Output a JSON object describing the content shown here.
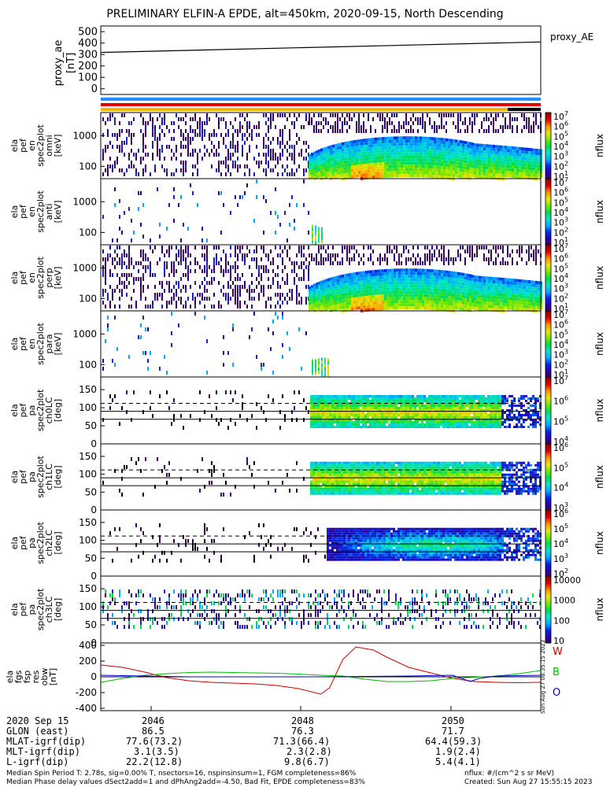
{
  "title": "PRELIMINARY ELFIN-A EPDE, alt=450km, 2020-09-15, North Descending",
  "chart_data": [
    {
      "type": "line",
      "panel": "proxy_ae",
      "ylabel": "proxy_ae\n[nT]",
      "legend": "proxy_AE",
      "yticks": [
        "500",
        "400",
        "300",
        "200",
        "100",
        "0"
      ],
      "ylim": [
        -50,
        550
      ],
      "series": [
        {
          "name": "proxy_AE",
          "x": [
            "20:45:15",
            "20:51:30"
          ],
          "y": [
            318,
            410
          ]
        }
      ]
    },
    {
      "type": "heatmap",
      "panel": "spectrogram",
      "ylabel": "ela\npef\nen\nspec2plot\nomni\n[keV]",
      "yticks": [
        "1000",
        "100"
      ],
      "colorbar_ticks": [
        "10^7",
        "10^6",
        "10^5",
        "10^4",
        "10^3",
        "10^2",
        "10^1"
      ],
      "colorbar_label": "nflux",
      "onset": "20:48:05"
    },
    {
      "type": "heatmap",
      "panel": "spectrogram",
      "ylabel": "ela\npef\nen\nspec2plot\nanti\n[keV]",
      "yticks": [
        "1000",
        "100"
      ],
      "colorbar_ticks": [
        "10^7",
        "10^6",
        "10^5",
        "10^4",
        "10^3",
        "10^2",
        "10^1"
      ],
      "colorbar_label": "nflux"
    },
    {
      "type": "heatmap",
      "panel": "spectrogram",
      "ylabel": "ela\npef\nen\nspec2plot\nperp\n[keV]",
      "yticks": [
        "1000",
        "100"
      ],
      "colorbar_ticks": [
        "10^7",
        "10^6",
        "10^5",
        "10^4",
        "10^3",
        "10^2",
        "10^1"
      ],
      "colorbar_label": "nflux"
    },
    {
      "type": "heatmap",
      "panel": "spectrogram",
      "ylabel": "ela\npef\nen\nspec2plot\npara\n[keV]",
      "yticks": [
        "1000",
        "100"
      ],
      "colorbar_ticks": [
        "10^7",
        "10^6",
        "10^5",
        "10^4",
        "10^3",
        "10^2",
        "10^1"
      ],
      "colorbar_label": "nflux"
    },
    {
      "type": "heatmap",
      "panel": "pitch-angle",
      "ylabel": "ela\npef\npa\nspec2plot\nch0LC\n[deg]",
      "yticks": [
        "150",
        "100",
        "50",
        "0"
      ],
      "colorbar_ticks": [
        "10^7",
        "10^6",
        "10^5",
        "10^4"
      ],
      "colorbar_label": "nflux"
    },
    {
      "type": "heatmap",
      "panel": "pitch-angle",
      "ylabel": "ela\npef\npa\nspec2plot\nch1LC\n[deg]",
      "yticks": [
        "150",
        "100",
        "50",
        "0"
      ],
      "colorbar_ticks": [
        "10^6",
        "10^5",
        "10^4",
        "10^3"
      ],
      "colorbar_label": "nflux"
    },
    {
      "type": "heatmap",
      "panel": "pitch-angle",
      "ylabel": "ela\npef\npa\nspec2plot\nch2LC\n[deg]",
      "yticks": [
        "150",
        "100",
        "50",
        "0"
      ],
      "colorbar_ticks": [
        "10^6",
        "10^5",
        "10^4",
        "10^3",
        "10^2"
      ],
      "colorbar_label": "nflux"
    },
    {
      "type": "heatmap",
      "panel": "pitch-angle",
      "ylabel": "ela\npef\npa\nspec2plot\nch3LC\n[deg]",
      "yticks": [
        "150",
        "100",
        "50",
        "0"
      ],
      "colorbar_ticks": [
        "10000",
        "1000",
        "100",
        "10"
      ],
      "colorbar_label": "nflux"
    },
    {
      "type": "line",
      "panel": "fgm",
      "ylabel": "ela\nfgs\nfsp\nres\nobw\n[nT]",
      "yticks": [
        "400",
        "200",
        "0",
        "-200",
        "-400"
      ],
      "ylim": [
        -430,
        430
      ],
      "legend": [
        "W",
        "B",
        "O"
      ],
      "series": [
        {
          "name": "W",
          "color": "#cc0000",
          "x": [
            0,
            5,
            10,
            15,
            20,
            25,
            30,
            35,
            40,
            45,
            50,
            52,
            55,
            58,
            62,
            65,
            70,
            75,
            80,
            85,
            90,
            95,
            100
          ],
          "y": [
            150,
            120,
            60,
            -10,
            -50,
            -70,
            -80,
            -90,
            -110,
            -150,
            -220,
            -140,
            220,
            380,
            340,
            250,
            120,
            50,
            -20,
            -60,
            -70,
            -75,
            -70
          ]
        },
        {
          "name": "B",
          "color": "#00bb00",
          "x": [
            0,
            5,
            10,
            15,
            20,
            25,
            30,
            35,
            40,
            45,
            50,
            55,
            60,
            65,
            70,
            75,
            80,
            85,
            90,
            95,
            100
          ],
          "y": [
            -70,
            -20,
            20,
            40,
            55,
            60,
            55,
            50,
            45,
            35,
            20,
            10,
            -30,
            -60,
            -60,
            -50,
            -20,
            -5,
            10,
            40,
            80
          ]
        },
        {
          "name": "O",
          "color": "#0000cc",
          "x": [
            0,
            10,
            20,
            30,
            40,
            50,
            60,
            70,
            80,
            84,
            86,
            90,
            100
          ],
          "y": [
            20,
            10,
            0,
            0,
            0,
            0,
            5,
            10,
            20,
            -60,
            -20,
            10,
            20
          ]
        }
      ]
    }
  ],
  "timestamp": "Sun Aug 27 08:35:15 2023",
  "xaxis": {
    "row_labels": [
      "2020 Sep 15",
      "GLON (east)",
      "MLAT-igrf(dip)",
      "MLT-igrf(dip)",
      "L-igrf(dip)"
    ],
    "ticks": [
      {
        "x": "2046",
        "glon": "86.5",
        "mlat": "77.6(73.2)",
        "mlt": "3.1(3.5)",
        "l": "22.2(12.8)"
      },
      {
        "x": "2048",
        "glon": "76.3",
        "mlat": "71.3(66.4)",
        "mlt": "2.3(2.8)",
        "l": "9.8(6.7)"
      },
      {
        "x": "2050",
        "glon": "71.7",
        "mlat": "64.4(59.3)",
        "mlt": "1.9(2.4)",
        "l": "5.4(4.1)"
      }
    ]
  },
  "footer": {
    "line1_left": "Median Spin Period T: 2.78s, sig=0.00% T, nsectors=16, nspinsinsum=1, FGM completeness=86%",
    "line2_left": "Median Phase delay values dSect2add=1 and dPhAng2add=-4.50, Bad Fit, EPDE completeness=83%",
    "line1_right": "nflux: #/(cm^2 s sr MeV)",
    "line2_right": "Created: Sun Aug 27 15:55:15 2023"
  }
}
